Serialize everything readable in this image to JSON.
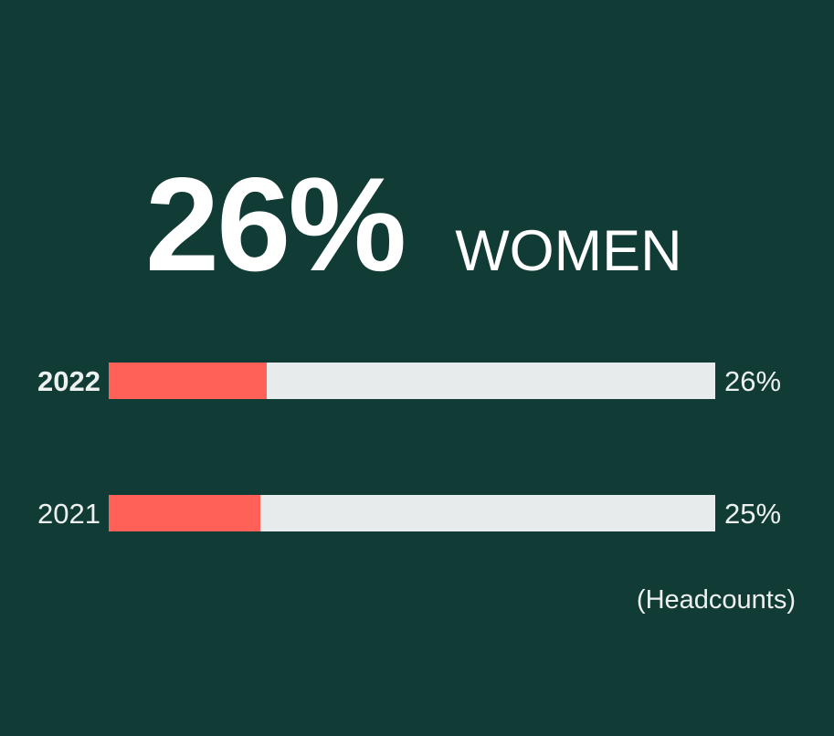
{
  "theme": {
    "background_color": "#113B35",
    "accent_color": "#FF6158",
    "track_color": "#E8EBEB",
    "text_color": "#EDF1F0",
    "heading_color": "#FFFFFF"
  },
  "headline": {
    "value": "26%",
    "label": "WOMEN"
  },
  "chart_data": {
    "type": "bar",
    "orientation": "horizontal",
    "title": "26% WOMEN",
    "categories": [
      "2022",
      "2021"
    ],
    "values": [
      26,
      25
    ],
    "value_labels": [
      "26%",
      "25%"
    ],
    "unit": "percent",
    "xlim": [
      0,
      100
    ],
    "highlighted_category": "2022",
    "legend": "none",
    "grid": false,
    "note": "(Headcounts)"
  },
  "footnote": {
    "label": "(Headcounts)"
  }
}
